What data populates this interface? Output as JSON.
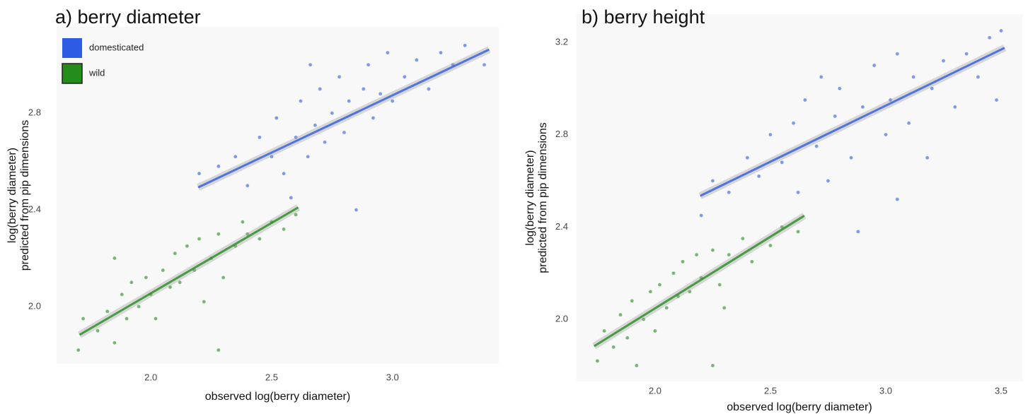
{
  "chart_data": [
    {
      "type": "scatter",
      "title": "a) berry diameter",
      "x_label": "observed log(berry diameter)",
      "y_label": [
        "log(berry diameter)",
        "predicted from pip dimensions"
      ],
      "xlim": [
        1.61,
        3.44
      ],
      "ylim": [
        1.763,
        3.157
      ],
      "xticks": [
        {
          "value": 2,
          "label": "2.0"
        },
        2.5,
        {
          "value": 3,
          "label": "3.0"
        }
      ],
      "yticks": [
        {
          "value": 2,
          "label": "2.0"
        },
        2.4,
        2.8
      ],
      "legend": "top-left",
      "series": [
        {
          "name": "domesticated",
          "color": "#2d5be3",
          "x": [
            2.2,
            2.28,
            2.35,
            2.4,
            2.45,
            2.5,
            2.52,
            2.55,
            2.6,
            2.62,
            2.65,
            2.68,
            2.7,
            2.72,
            2.75,
            2.78,
            2.8,
            2.82,
            2.85,
            2.88,
            2.9,
            2.92,
            2.95,
            2.98,
            3.0,
            3.05,
            3.1,
            3.15,
            3.2,
            3.25,
            3.3,
            3.38,
            2.58,
            2.66
          ],
          "y": [
            2.55,
            2.58,
            2.62,
            2.5,
            2.7,
            2.62,
            2.78,
            2.55,
            2.7,
            2.85,
            2.62,
            2.75,
            2.9,
            2.68,
            2.8,
            2.95,
            2.72,
            2.85,
            2.4,
            2.9,
            3.0,
            2.78,
            2.88,
            3.05,
            2.85,
            2.95,
            3.02,
            2.9,
            3.05,
            3.0,
            3.08,
            3.0,
            2.45,
            3.0
          ],
          "trend_x": [
            2.196,
            3.4
          ],
          "trend_y": [
            2.493,
            3.063
          ]
        },
        {
          "name": "wild",
          "color": "#238c1b",
          "x": [
            1.7,
            1.72,
            1.78,
            1.82,
            1.85,
            1.88,
            1.9,
            1.92,
            1.95,
            1.98,
            2.0,
            2.02,
            2.05,
            2.08,
            2.1,
            2.12,
            2.15,
            2.18,
            2.2,
            2.22,
            2.25,
            2.28,
            2.3,
            2.35,
            2.4,
            2.45,
            2.5,
            2.55,
            2.6,
            2.28,
            1.85,
            2.38
          ],
          "y": [
            1.82,
            1.95,
            1.9,
            1.98,
            1.85,
            2.05,
            1.95,
            2.1,
            2.0,
            2.12,
            2.05,
            1.95,
            2.15,
            2.08,
            2.22,
            2.1,
            2.25,
            2.15,
            2.28,
            2.02,
            2.2,
            2.3,
            2.12,
            2.25,
            2.3,
            2.28,
            2.35,
            2.32,
            2.38,
            1.82,
            2.2,
            2.35
          ],
          "trend_x": [
            1.705,
            2.61
          ],
          "trend_y": [
            1.883,
            2.41
          ]
        }
      ]
    },
    {
      "type": "scatter",
      "title": "b) berry height",
      "x_label": "observed log(berry diameter)",
      "y_label": [
        "log(berry diameter)",
        "predicted from pip dimensions"
      ],
      "xlim": [
        1.66,
        3.592
      ],
      "ylim": [
        1.731,
        3.322
      ],
      "xticks": [
        {
          "value": 2,
          "label": "2.0"
        },
        2.5,
        {
          "value": 3,
          "label": "3.0"
        },
        3.5
      ],
      "yticks": [
        {
          "value": 2,
          "label": "2.0"
        },
        2.4,
        2.8,
        3.2
      ],
      "series": [
        {
          "color": "#2d5be3",
          "x": [
            2.2,
            2.25,
            2.32,
            2.4,
            2.45,
            2.5,
            2.55,
            2.6,
            2.62,
            2.65,
            2.7,
            2.72,
            2.75,
            2.78,
            2.8,
            2.85,
            2.88,
            2.9,
            2.95,
            3.0,
            3.02,
            3.05,
            3.1,
            3.12,
            3.18,
            3.2,
            3.25,
            3.3,
            3.35,
            3.4,
            3.45,
            3.5,
            3.48,
            3.05
          ],
          "y": [
            2.45,
            2.6,
            2.55,
            2.7,
            2.62,
            2.8,
            2.68,
            2.85,
            2.55,
            2.95,
            2.75,
            3.05,
            2.6,
            2.88,
            3.0,
            2.7,
            2.38,
            2.92,
            3.1,
            2.8,
            2.95,
            3.15,
            2.85,
            3.05,
            2.7,
            3.0,
            3.12,
            2.92,
            3.15,
            3.05,
            3.22,
            3.25,
            2.95,
            2.52
          ],
          "trend_x": [
            2.196,
            3.515
          ],
          "trend_y": [
            2.535,
            3.176
          ]
        },
        {
          "color": "#238c1b",
          "x": [
            1.75,
            1.78,
            1.82,
            1.85,
            1.88,
            1.9,
            1.95,
            1.98,
            2.0,
            2.02,
            2.05,
            2.08,
            2.1,
            2.12,
            2.15,
            2.18,
            2.2,
            2.25,
            2.28,
            2.32,
            2.38,
            2.42,
            2.5,
            2.55,
            2.62,
            2.3,
            2.25,
            1.92
          ],
          "y": [
            1.82,
            1.95,
            1.88,
            2.02,
            1.92,
            2.08,
            2.0,
            2.12,
            1.95,
            2.15,
            2.05,
            2.2,
            2.1,
            2.25,
            2.12,
            2.28,
            2.18,
            2.3,
            2.15,
            2.28,
            2.35,
            2.25,
            2.32,
            2.4,
            2.38,
            2.05,
            1.8,
            1.8
          ],
          "trend_x": [
            1.736,
            2.647
          ],
          "trend_y": [
            1.884,
            2.449
          ]
        }
      ]
    }
  ]
}
